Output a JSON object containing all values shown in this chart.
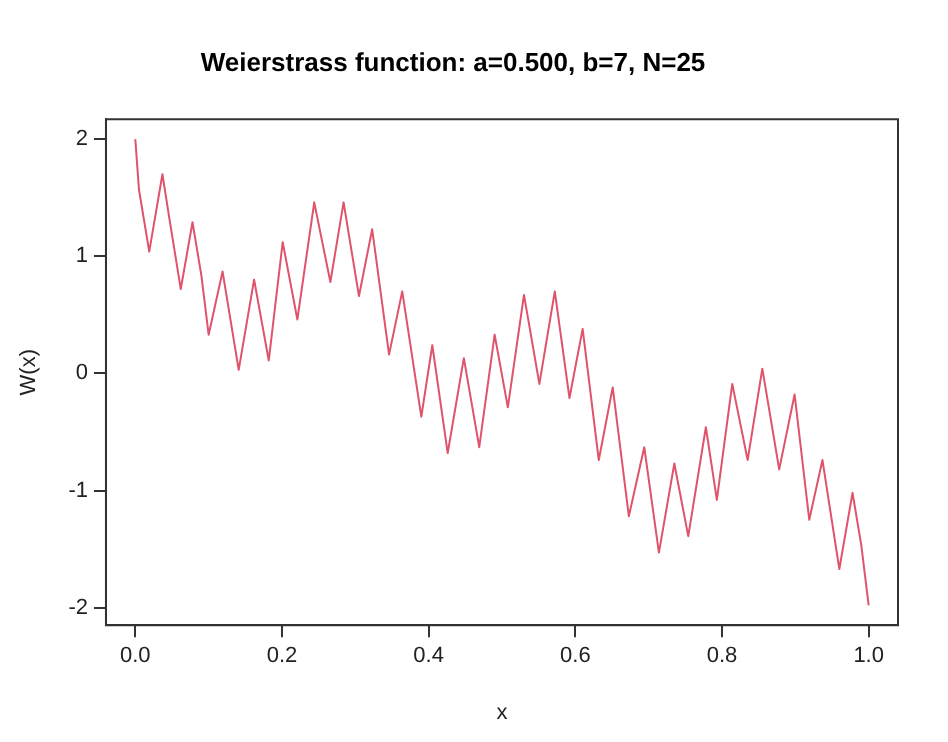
{
  "chart_data": {
    "type": "line",
    "title": "Weierstrass function: a=0.500, b=7, N=25",
    "xlabel": "x",
    "ylabel": "W(x)",
    "xlim": [
      -0.04,
      1.04
    ],
    "ylim": [
      -2.15,
      2.17
    ],
    "xticks": [
      {
        "value": 0,
        "label": "0.0"
      },
      {
        "value": 0.2,
        "label": "0.2"
      },
      {
        "value": 0.4,
        "label": "0.4"
      },
      {
        "value": 0.6,
        "label": "0.6"
      },
      {
        "value": 0.8,
        "label": "0.8"
      },
      {
        "value": 1,
        "label": "1.0"
      }
    ],
    "yticks": [
      -2,
      -1,
      0,
      1,
      2
    ],
    "grid": false,
    "legend": false,
    "marker": "none",
    "line_style": "solid",
    "series": [
      {
        "color": "#df536b",
        "x": [
          0,
          0.005,
          0.019,
          0.037,
          0.046,
          0.062,
          0.078,
          0.09,
          0.1,
          0.119,
          0.141,
          0.162,
          0.182,
          0.201,
          0.221,
          0.244,
          0.266,
          0.284,
          0.305,
          0.323,
          0.346,
          0.364,
          0.39,
          0.405,
          0.426,
          0.448,
          0.469,
          0.49,
          0.508,
          0.53,
          0.551,
          0.572,
          0.592,
          0.61,
          0.632,
          0.651,
          0.673,
          0.694,
          0.714,
          0.735,
          0.754,
          0.778,
          0.793,
          0.814,
          0.835,
          0.855,
          0.878,
          0.899,
          0.919,
          0.937,
          0.96,
          0.978,
          0.99,
          1.0
        ],
        "values": [
          2.0,
          1.57,
          1.04,
          1.7,
          1.34,
          0.72,
          1.29,
          0.84,
          0.33,
          0.87,
          0.03,
          0.8,
          0.11,
          1.12,
          0.46,
          1.46,
          0.78,
          1.46,
          0.66,
          1.23,
          0.16,
          0.7,
          -0.37,
          0.24,
          -0.68,
          0.13,
          -0.63,
          0.33,
          -0.29,
          0.67,
          -0.09,
          0.7,
          -0.21,
          0.38,
          -0.74,
          -0.12,
          -1.22,
          -0.63,
          -1.53,
          -0.77,
          -1.39,
          -0.46,
          -1.08,
          -0.09,
          -0.74,
          0.04,
          -0.82,
          -0.18,
          -1.25,
          -0.74,
          -1.67,
          -1.02,
          -1.47,
          -1.98
        ]
      }
    ]
  }
}
